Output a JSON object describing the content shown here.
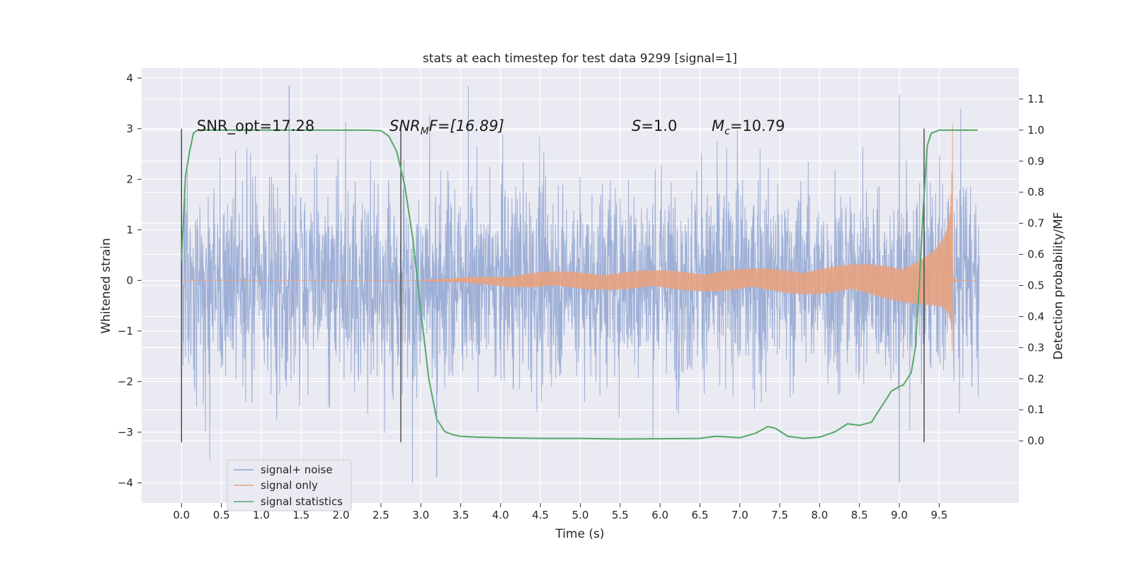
{
  "chart_data": {
    "type": "line",
    "title": "stats at each timestep for test data 9299 [signal=1]",
    "xlabel": "Time (s)",
    "ylabel": "Whitened strain",
    "y2label": "Detection probability/MF",
    "xlim": [
      -0.5,
      10.5
    ],
    "ylim": [
      -4.4,
      4.2
    ],
    "y2lim": [
      -0.2,
      1.2
    ],
    "x_ticks": [
      "0.0",
      "0.5",
      "1.0",
      "1.5",
      "2.0",
      "2.5",
      "3.0",
      "3.5",
      "4.0",
      "4.5",
      "5.0",
      "5.5",
      "6.0",
      "6.5",
      "7.0",
      "7.5",
      "8.0",
      "8.5",
      "9.0",
      "9.5"
    ],
    "y_ticks": [
      "4",
      "3",
      "2",
      "1",
      "0",
      "−1",
      "−2",
      "−3",
      "−4"
    ],
    "y2_ticks": [
      "1.1",
      "1.0",
      "0.9",
      "0.8",
      "0.7",
      "0.6",
      "0.5",
      "0.4",
      "0.3",
      "0.2",
      "0.1",
      "0.0"
    ],
    "grid": true,
    "legend_position": "bottom-left",
    "annotations": {
      "snr_opt": "SNR_opt=17.28",
      "snr_mf_base": "SNR",
      "snr_mf_sub": "M",
      "snr_mf_rest": "F=[16.89]",
      "s_var": "S",
      "s_rest": "=1.0",
      "mc_var": "M",
      "mc_sub": "c",
      "mc_rest": "=10.79"
    },
    "vertical_markers": [
      {
        "x": 0.0,
        "y_range": [
          -3.2,
          3.0
        ]
      },
      {
        "x": 2.75,
        "y_range": [
          -3.2,
          3.0
        ]
      },
      {
        "x": 9.31,
        "y_range": [
          -3.2,
          3.0
        ]
      }
    ],
    "series": [
      {
        "name": "signal+ noise",
        "color": "#8fa5d1",
        "x_range": [
          0.0,
          10.0
        ],
        "y_range": [
          -4.0,
          3.85
        ],
        "description_points": [
          [
            1.35,
            3.85
          ],
          [
            9.0,
            -4.0
          ],
          [
            3.2,
            -3.9
          ]
        ]
      },
      {
        "name": "signal only",
        "color": "#e8a27f",
        "x_range": [
          0.0,
          10.0
        ],
        "chirp_peak_time": 9.67,
        "chirp_peak_amplitude": 3.1
      },
      {
        "name": "signal statistics",
        "color": "#55a868",
        "axis": "right",
        "x": [
          0.0,
          0.05,
          0.1,
          0.15,
          0.2,
          0.3,
          0.5,
          1.0,
          1.5,
          2.0,
          2.3,
          2.5,
          2.6,
          2.7,
          2.8,
          2.9,
          3.0,
          3.1,
          3.2,
          3.3,
          3.4,
          3.5,
          3.7,
          4.0,
          4.5,
          5.0,
          5.5,
          6.0,
          6.5,
          6.7,
          7.0,
          7.2,
          7.35,
          7.45,
          7.6,
          7.8,
          8.0,
          8.2,
          8.35,
          8.5,
          8.65,
          8.8,
          8.9,
          9.0,
          9.05,
          9.15,
          9.2,
          9.25,
          9.3,
          9.35,
          9.4,
          9.5,
          9.7,
          9.98
        ],
        "y": [
          0.58,
          0.85,
          0.93,
          0.99,
          1.0,
          1.0,
          1.0,
          1.0,
          1.0,
          1.0,
          1.0,
          0.998,
          0.98,
          0.93,
          0.82,
          0.65,
          0.42,
          0.2,
          0.07,
          0.03,
          0.02,
          0.015,
          0.012,
          0.01,
          0.008,
          0.008,
          0.006,
          0.007,
          0.008,
          0.015,
          0.01,
          0.025,
          0.046,
          0.04,
          0.015,
          0.008,
          0.012,
          0.03,
          0.055,
          0.05,
          0.06,
          0.12,
          0.16,
          0.175,
          0.18,
          0.22,
          0.3,
          0.5,
          0.75,
          0.95,
          0.99,
          1.0,
          1.0,
          1.0
        ]
      }
    ]
  }
}
